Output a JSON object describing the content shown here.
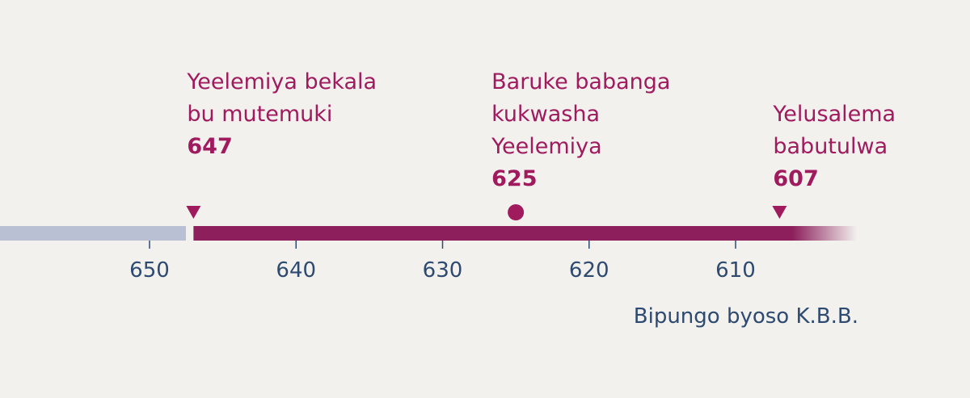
{
  "timeline": {
    "events": [
      {
        "lines": [
          "Yeelemiya bekala",
          "bu mutemuki"
        ],
        "year": 647
      },
      {
        "lines": [
          "Baruke babanga",
          "kukwasha",
          "Yeelemiya"
        ],
        "year": 625
      },
      {
        "lines": [
          "Yelusalema",
          "babutulwa"
        ],
        "year": 607
      }
    ],
    "ticks": [
      650,
      640,
      630,
      620,
      610
    ],
    "note": "Bipungo byoso K.B.B."
  }
}
